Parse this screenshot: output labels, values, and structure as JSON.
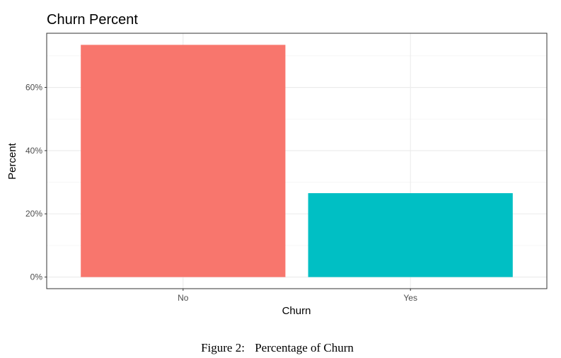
{
  "chart_data": {
    "type": "bar",
    "title": "Churn Percent",
    "xlabel": "Churn",
    "ylabel": "Percent",
    "categories": [
      "No",
      "Yes"
    ],
    "values": [
      0.7346,
      0.2654
    ],
    "colors": [
      "#F8766D",
      "#00BFC4"
    ],
    "ylim": [
      -0.0367,
      0.7713
    ],
    "yticks": [
      0,
      0.2,
      0.4,
      0.6
    ],
    "ytick_labels": [
      "0%",
      "20%",
      "40%",
      "60%"
    ],
    "grid": true,
    "legend": "none"
  },
  "caption": {
    "label": "Figure 2:",
    "text": "Percentage of Churn"
  }
}
